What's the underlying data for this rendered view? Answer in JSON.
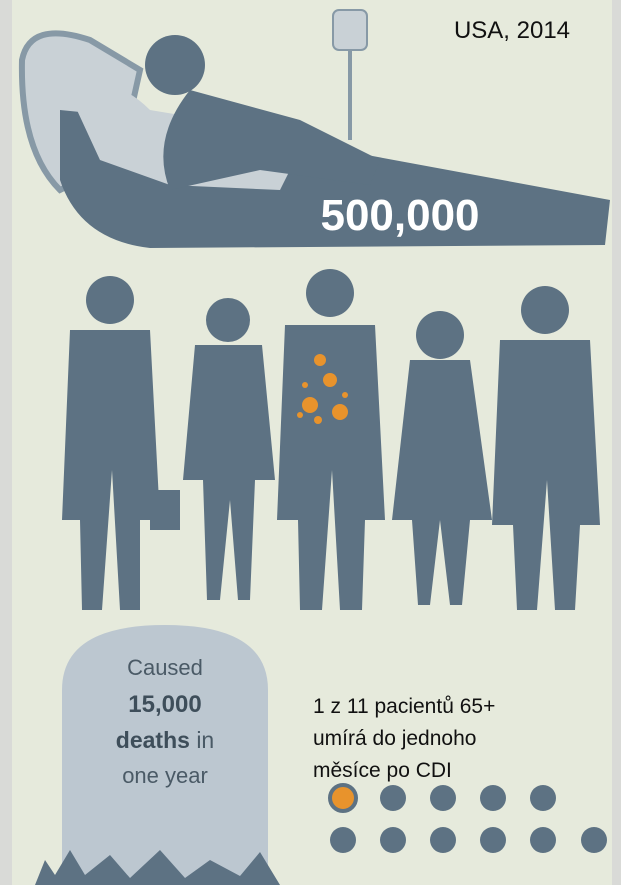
{
  "header": {
    "location_year": "USA, 2014"
  },
  "hospital": {
    "count": "500,000"
  },
  "tombstone": {
    "line1": "Caused",
    "number": "15,000",
    "deaths": "deaths",
    "in": "in",
    "line4": "one year"
  },
  "stat": {
    "lines": [
      "1 z 11 pacientů 65+",
      "umírá do jednoho",
      "měsíce po CDI"
    ]
  }
}
